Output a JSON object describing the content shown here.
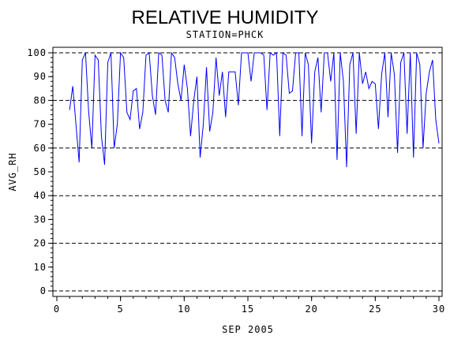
{
  "chart_data": {
    "type": "line",
    "title": "RELATIVE HUMIDITY",
    "subtitle": "STATION=PHCK",
    "x_label": "SEP 2005",
    "y_label": "AVG_RH",
    "xlim": [
      0,
      30
    ],
    "xticks": [
      0,
      5,
      10,
      15,
      20,
      25,
      30
    ],
    "ylim": [
      0,
      100
    ],
    "yticks": [
      0,
      10,
      20,
      30,
      40,
      50,
      60,
      70,
      80,
      90,
      100
    ],
    "grid": true,
    "series": [
      {
        "name": "AVG_RH",
        "color": "#0000ff",
        "x": [
          1,
          1.25,
          1.5,
          1.75,
          2,
          2.25,
          2.5,
          2.75,
          3,
          3.25,
          3.5,
          3.75,
          4,
          4.25,
          4.5,
          4.75,
          5,
          5.25,
          5.5,
          5.75,
          6,
          6.25,
          6.5,
          6.75,
          7,
          7.25,
          7.5,
          7.75,
          8,
          8.25,
          8.5,
          8.75,
          9,
          9.25,
          9.5,
          9.75,
          10,
          10.25,
          10.5,
          10.75,
          11,
          11.25,
          11.5,
          11.75,
          12,
          12.25,
          12.5,
          12.75,
          13,
          13.25,
          13.5,
          13.75,
          14,
          14.25,
          14.5,
          14.75,
          15,
          15.25,
          15.5,
          15.75,
          16,
          16.25,
          16.5,
          16.75,
          17,
          17.25,
          17.5,
          17.75,
          18,
          18.25,
          18.5,
          18.75,
          19,
          19.25,
          19.5,
          19.75,
          20,
          20.25,
          20.5,
          20.75,
          21,
          21.25,
          21.5,
          21.75,
          22,
          22.25,
          22.5,
          22.75,
          23,
          23.25,
          23.5,
          23.75,
          24,
          24.25,
          24.5,
          24.75,
          25,
          25.25,
          25.5,
          25.75,
          26,
          26.25,
          26.5,
          26.75,
          27,
          27.25,
          27.5,
          27.75,
          28,
          28.25,
          28.5,
          28.75,
          29,
          29.25,
          29.5,
          29.75,
          30
        ],
        "values": [
          76,
          86,
          70,
          54,
          97,
          100,
          75,
          60,
          99,
          97,
          65,
          53,
          96,
          100,
          60,
          70,
          100,
          98,
          75,
          72,
          84,
          85,
          68,
          75,
          99,
          100,
          82,
          74,
          100,
          99,
          80,
          75,
          100,
          98,
          87,
          80,
          95,
          85,
          65,
          80,
          90,
          56,
          70,
          94,
          67,
          75,
          98,
          82,
          92,
          73,
          92,
          92,
          92,
          78,
          100,
          100,
          100,
          88,
          100,
          100,
          100,
          99,
          76,
          100,
          99,
          100,
          65,
          100,
          99,
          83,
          84,
          100,
          100,
          65,
          100,
          95,
          62,
          92,
          98,
          75,
          100,
          100,
          88,
          100,
          55,
          100,
          88,
          52,
          95,
          100,
          66,
          100,
          87,
          92,
          85,
          88,
          87,
          68,
          91,
          100,
          73,
          100,
          91,
          58,
          96,
          100,
          66,
          100,
          56,
          100,
          95,
          60,
          83,
          92,
          97,
          72,
          62
        ]
      }
    ]
  }
}
